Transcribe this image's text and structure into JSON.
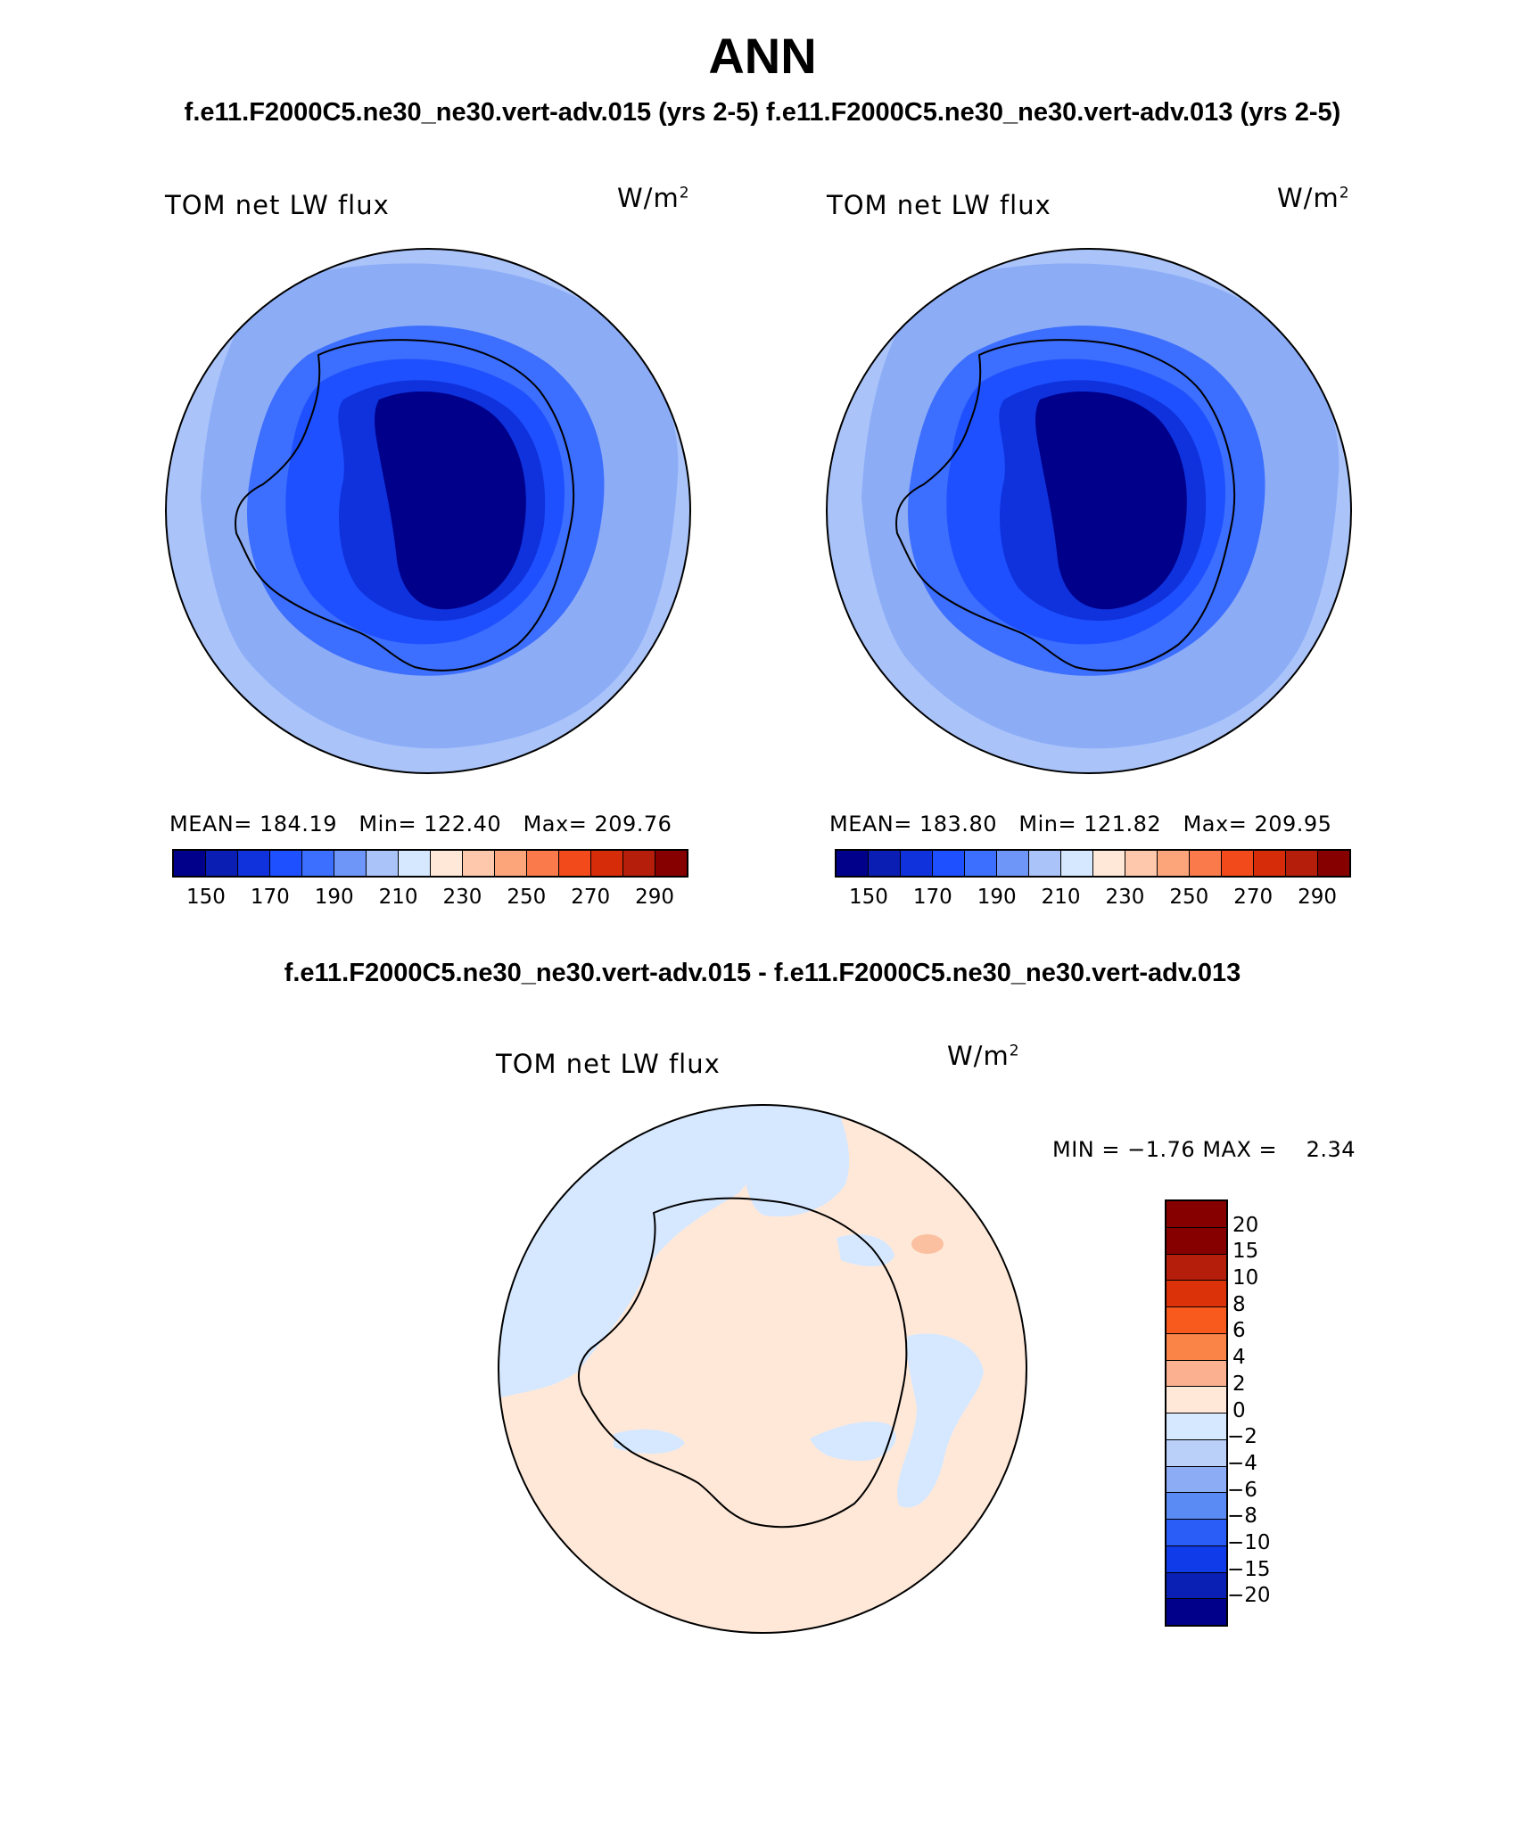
{
  "header": {
    "season": "ANN",
    "subtitle": "f.e11.F2000C5.ne30_ne30.vert-adv.015 (yrs 2-5)  f.e11.F2000C5.ne30_ne30.vert-adv.013 (yrs 2-5)"
  },
  "panels": [
    {
      "variable": "TOM net LW flux",
      "units_base": "W/m",
      "units_exp": "2",
      "mean_label": "MEAN=",
      "mean": "184.19",
      "min_label": "Min=",
      "min": "122.40",
      "max_label": "Max=",
      "max": "209.76"
    },
    {
      "variable": "TOM net LW flux",
      "units_base": "W/m",
      "units_exp": "2",
      "mean_label": "MEAN=",
      "mean": "183.80",
      "min_label": "Min=",
      "min": "121.82",
      "max_label": "Max=",
      "max": "209.95"
    }
  ],
  "field_colorbar": {
    "tick_labels": [
      "150",
      "170",
      "190",
      "210",
      "230",
      "250",
      "270",
      "290"
    ],
    "colors": [
      "#00008b",
      "#0a1eb4",
      "#0f32dc",
      "#1e50ff",
      "#3c6eff",
      "#6e96f8",
      "#aac4fa",
      "#d6e8ff",
      "#ffe8d8",
      "#fdc8ac",
      "#fca47a",
      "#fa7a4c",
      "#f34a1c",
      "#d62c0a",
      "#b41e0a",
      "#870000"
    ]
  },
  "difference": {
    "title": "f.e11.F2000C5.ne30_ne30.vert-adv.015 - f.e11.F2000C5.ne30_ne30.vert-adv.013",
    "variable": "TOM net LW flux",
    "units_base": "W/m",
    "units_exp": "2",
    "min_label": "MIN =",
    "min": "−1.76",
    "max_label": "MAX =",
    "max": "2.34",
    "colorbar": {
      "tick_labels": [
        "20",
        "15",
        "10",
        "8",
        "6",
        "4",
        "2",
        "0",
        "−2",
        "−4",
        "−6",
        "−8",
        "−10",
        "−15",
        "−20"
      ],
      "colors": [
        "#870000",
        "#b41e0a",
        "#dc320a",
        "#f85a1e",
        "#fa8448",
        "#fbb090",
        "#ffe8d8",
        "#d6e8ff",
        "#bad0f8",
        "#8cacf6",
        "#5a8af4",
        "#2a5cf8",
        "#0f3ce8",
        "#0a20b4",
        "#00008b"
      ]
    }
  },
  "chart_data": {
    "type": "polar-stereographic contour maps",
    "region": "Antarctica / Southern Hemisphere",
    "panels": [
      {
        "run": "f.e11.F2000C5.ne30_ne30.vert-adv.015 (yrs 2-5)",
        "variable": "TOM net LW flux",
        "units": "W/m2",
        "mean": 184.19,
        "min": 122.4,
        "max": 209.76
      },
      {
        "run": "f.e11.F2000C5.ne30_ne30.vert-adv.013 (yrs 2-5)",
        "variable": "TOM net LW flux",
        "units": "W/m2",
        "mean": 183.8,
        "min": 121.82,
        "max": 209.95
      },
      {
        "run": "difference",
        "variable": "TOM net LW flux",
        "units": "W/m2",
        "min": -1.76,
        "max": 2.34
      }
    ],
    "field_levels": [
      150,
      170,
      190,
      210,
      230,
      250,
      270,
      290
    ],
    "difference_levels": [
      -20,
      -15,
      -10,
      -8,
      -6,
      -4,
      -2,
      0,
      2,
      4,
      6,
      8,
      10,
      15,
      20
    ]
  }
}
